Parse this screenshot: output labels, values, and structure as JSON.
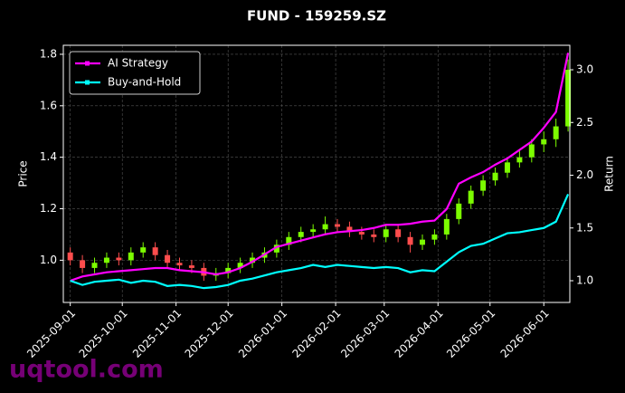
{
  "chart_data": {
    "type": "candlestick",
    "title": "FUND - 159259.SZ",
    "ylabel": "Price",
    "y2label": "Return",
    "watermark": "uqtool.com",
    "x": [
      "2025-09-01",
      "2025-09-08",
      "2025-09-15",
      "2025-09-22",
      "2025-09-29",
      "2025-10-06",
      "2025-10-13",
      "2025-10-20",
      "2025-10-27",
      "2025-11-03",
      "2025-11-10",
      "2025-11-17",
      "2025-11-24",
      "2025-12-01",
      "2025-12-08",
      "2025-12-15",
      "2025-12-22",
      "2025-12-29",
      "2026-01-05",
      "2026-01-12",
      "2026-01-19",
      "2026-01-26",
      "2026-02-02",
      "2026-02-09",
      "2026-02-16",
      "2026-02-23",
      "2026-03-02",
      "2026-03-09",
      "2026-03-16",
      "2026-03-23",
      "2026-03-30",
      "2026-04-06",
      "2026-04-13",
      "2026-04-20",
      "2026-04-27",
      "2026-05-04",
      "2026-05-11",
      "2026-05-18",
      "2026-05-25",
      "2026-06-01",
      "2026-06-08",
      "2026-06-15"
    ],
    "open": [
      1.03,
      1.0,
      0.97,
      0.99,
      1.01,
      1.0,
      1.03,
      1.05,
      1.02,
      0.99,
      0.98,
      0.97,
      0.94,
      0.95,
      0.97,
      0.99,
      1.01,
      1.03,
      1.06,
      1.09,
      1.11,
      1.12,
      1.14,
      1.13,
      1.11,
      1.1,
      1.09,
      1.12,
      1.09,
      1.06,
      1.08,
      1.1,
      1.16,
      1.22,
      1.27,
      1.31,
      1.34,
      1.38,
      1.4,
      1.45,
      1.47,
      1.52
    ],
    "high": [
      1.05,
      1.02,
      1.01,
      1.03,
      1.03,
      1.05,
      1.07,
      1.07,
      1.04,
      1.01,
      1.0,
      0.99,
      0.97,
      0.99,
      1.01,
      1.03,
      1.05,
      1.08,
      1.11,
      1.13,
      1.14,
      1.17,
      1.16,
      1.15,
      1.13,
      1.12,
      1.14,
      1.14,
      1.11,
      1.1,
      1.12,
      1.18,
      1.24,
      1.29,
      1.33,
      1.36,
      1.4,
      1.43,
      1.47,
      1.5,
      1.55,
      1.78
    ],
    "low": [
      0.98,
      0.95,
      0.95,
      0.97,
      0.98,
      0.98,
      1.01,
      1.0,
      0.97,
      0.96,
      0.95,
      0.92,
      0.92,
      0.93,
      0.95,
      0.97,
      0.99,
      1.01,
      1.04,
      1.07,
      1.09,
      1.1,
      1.11,
      1.09,
      1.08,
      1.07,
      1.07,
      1.07,
      1.03,
      1.04,
      1.06,
      1.08,
      1.14,
      1.2,
      1.25,
      1.29,
      1.32,
      1.36,
      1.38,
      1.42,
      1.44,
      1.5
    ],
    "close": [
      1.0,
      0.97,
      0.99,
      1.01,
      1.0,
      1.03,
      1.05,
      1.02,
      0.99,
      0.98,
      0.97,
      0.94,
      0.95,
      0.97,
      0.99,
      1.01,
      1.03,
      1.06,
      1.09,
      1.11,
      1.12,
      1.14,
      1.13,
      1.11,
      1.1,
      1.09,
      1.12,
      1.09,
      1.06,
      1.08,
      1.1,
      1.16,
      1.22,
      1.27,
      1.31,
      1.34,
      1.38,
      1.4,
      1.45,
      1.47,
      1.52,
      1.74
    ],
    "up_color": "#7cfc00",
    "down_color": "#ff4d4d",
    "series": [
      {
        "name": "AI Strategy",
        "color": "#ff00ff",
        "axis": "y2",
        "values": [
          1.0,
          1.04,
          1.06,
          1.08,
          1.09,
          1.1,
          1.11,
          1.12,
          1.12,
          1.1,
          1.09,
          1.08,
          1.06,
          1.08,
          1.12,
          1.18,
          1.25,
          1.32,
          1.35,
          1.38,
          1.41,
          1.44,
          1.46,
          1.47,
          1.48,
          1.5,
          1.53,
          1.53,
          1.54,
          1.56,
          1.57,
          1.68,
          1.92,
          1.98,
          2.03,
          2.1,
          2.16,
          2.24,
          2.32,
          2.45,
          2.6,
          3.16
        ]
      },
      {
        "name": "Buy-and-Hold",
        "color": "#00ffff",
        "axis": "y2",
        "values": [
          1.0,
          0.96,
          0.99,
          1.0,
          1.01,
          0.98,
          1.0,
          0.99,
          0.95,
          0.96,
          0.95,
          0.93,
          0.94,
          0.96,
          1.0,
          1.02,
          1.05,
          1.08,
          1.1,
          1.12,
          1.15,
          1.13,
          1.15,
          1.14,
          1.13,
          1.12,
          1.13,
          1.12,
          1.08,
          1.1,
          1.09,
          1.18,
          1.27,
          1.33,
          1.35,
          1.4,
          1.45,
          1.46,
          1.48,
          1.5,
          1.56,
          1.82
        ]
      }
    ],
    "xlim": [
      "2025-08-28",
      "2026-06-16"
    ],
    "xticks": [
      "2025-09-01",
      "2025-10-01",
      "2025-11-01",
      "2025-12-01",
      "2026-01-01",
      "2026-02-01",
      "2026-03-01",
      "2026-04-01",
      "2026-05-01",
      "2026-06-01"
    ],
    "ylim": [
      0.836,
      1.835
    ],
    "yticks": [
      {
        "value": 1.0,
        "label": "1.0"
      },
      1.2,
      1.4,
      1.6,
      1.8
    ],
    "y2lim": [
      0.794,
      3.232
    ],
    "y2ticks": [
      {
        "value": 1.0,
        "label": "1.0"
      },
      1.5,
      {
        "value": 2.0,
        "label": "2.0"
      },
      2.5,
      {
        "value": 3.0,
        "label": "3.0"
      }
    ],
    "grid": true,
    "legend": "upper-left"
  }
}
